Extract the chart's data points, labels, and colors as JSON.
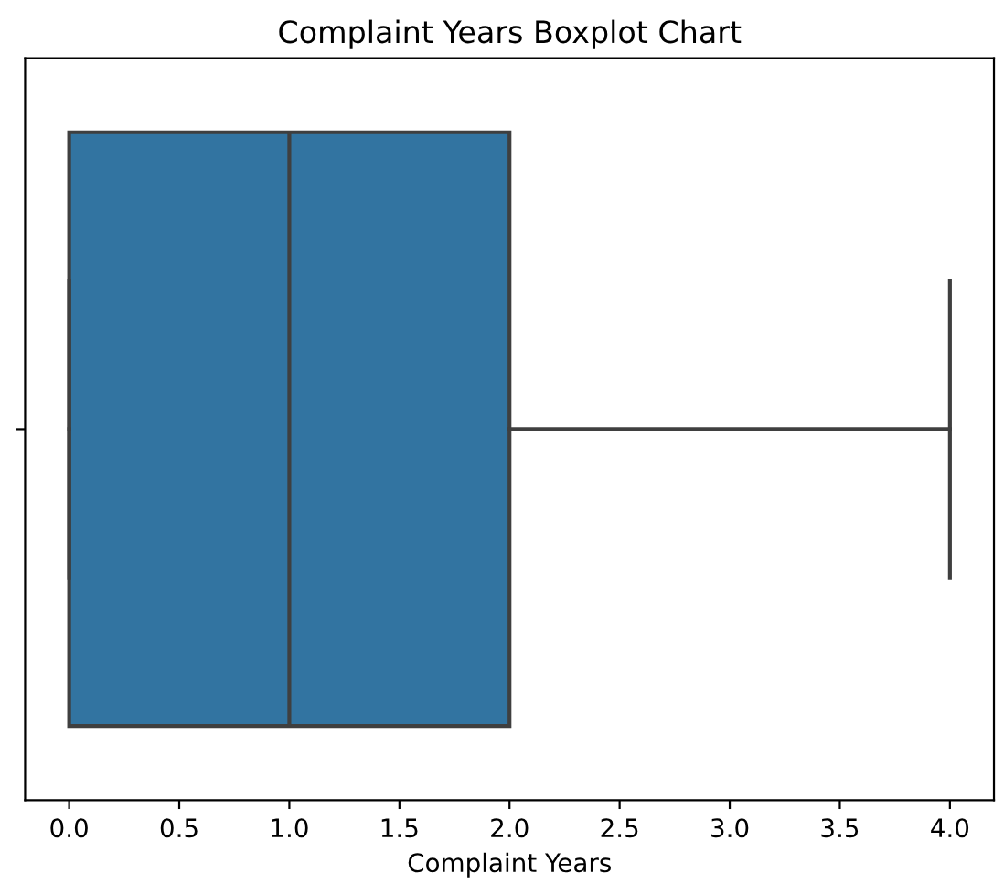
{
  "chart_data": {
    "type": "box",
    "title": "Complaint Years Boxplot Chart",
    "xlabel": "Complaint Years",
    "orientation": "horizontal",
    "categories": [
      null
    ],
    "series": [
      {
        "color": "#3274a1",
        "boxes": [
          {
            "low": 0,
            "q1": 0,
            "median": 1,
            "q3": 2,
            "high": 4
          }
        ]
      }
    ],
    "xlim": [
      -0.2,
      4.2
    ],
    "xticks": [
      {
        "value": 0,
        "label": "0.0"
      },
      {
        "value": 0.5,
        "label": "0.5"
      },
      {
        "value": 1,
        "label": "1.0"
      },
      {
        "value": 1.5,
        "label": "1.5"
      },
      {
        "value": 2,
        "label": "2.0"
      },
      {
        "value": 2.5,
        "label": "2.5"
      },
      {
        "value": 3,
        "label": "3.0"
      },
      {
        "value": 3.5,
        "label": "3.5"
      },
      {
        "value": 4,
        "label": "4.0"
      }
    ]
  }
}
